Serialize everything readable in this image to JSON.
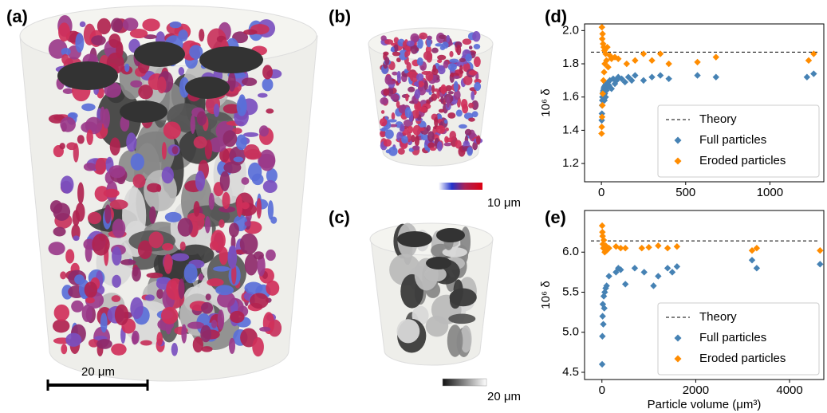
{
  "figure": {
    "panel_labels": [
      "(a)",
      "(b)",
      "(c)",
      "(d)",
      "(e)"
    ],
    "scale_bar": "20 μm",
    "colorbar_b": "10 μm",
    "colorbar_c": "20 μm"
  },
  "chart_data": [
    {
      "type": "scatter",
      "ylabel": "10⁶ δ",
      "xlim": [
        -100,
        1320
      ],
      "ylim": [
        1.09,
        2.04
      ],
      "xticks": [
        0,
        500,
        1000
      ],
      "yticks": [
        1.2,
        1.4,
        1.6,
        1.8,
        {
          "value": 2,
          "label": "2.0"
        }
      ],
      "legend": "lower right",
      "reference_line": {
        "name": "Theory",
        "value": 1.87,
        "color": "#000000"
      },
      "series": [
        {
          "name": "Full particles",
          "color": "#4682b4",
          "x": [
            2,
            3,
            4,
            5,
            6,
            8,
            10,
            12,
            14,
            16,
            18,
            20,
            22,
            25,
            28,
            30,
            35,
            40,
            45,
            50,
            60,
            70,
            80,
            90,
            100,
            120,
            140,
            160,
            180,
            200,
            250,
            300,
            350,
            400,
            570,
            680,
            1220,
            1260
          ],
          "values": [
            1.46,
            1.5,
            1.55,
            1.58,
            1.6,
            1.62,
            1.63,
            1.64,
            1.65,
            1.66,
            1.58,
            1.62,
            1.67,
            1.6,
            1.68,
            1.64,
            1.66,
            1.69,
            1.67,
            1.7,
            1.65,
            1.71,
            1.68,
            1.7,
            1.72,
            1.71,
            1.69,
            1.72,
            1.7,
            1.73,
            1.7,
            1.72,
            1.73,
            1.71,
            1.73,
            1.72,
            1.72,
            1.74
          ]
        },
        {
          "name": "Eroded particles",
          "color": "#ff8c00",
          "x": [
            1,
            2,
            3,
            4,
            5,
            6,
            7,
            8,
            10,
            12,
            14,
            16,
            18,
            20,
            25,
            30,
            35,
            40,
            50,
            60,
            80,
            100,
            150,
            200,
            250,
            300,
            350,
            400,
            570,
            680,
            1230,
            1260
          ],
          "values": [
            1.38,
            1.42,
            2.02,
            1.48,
            1.95,
            1.55,
            1.98,
            1.62,
            1.92,
            1.7,
            1.9,
            1.75,
            1.88,
            1.8,
            1.86,
            1.82,
            1.9,
            1.78,
            1.85,
            1.83,
            1.84,
            1.83,
            1.8,
            1.82,
            1.86,
            1.82,
            1.86,
            1.8,
            1.81,
            1.84,
            1.82,
            1.86
          ]
        }
      ]
    },
    {
      "type": "scatter",
      "xlabel": "Particle volume (μm³)",
      "ylabel": "10⁶ δ",
      "xlim": [
        -370,
        4730
      ],
      "ylim": [
        4.41,
        6.52
      ],
      "xticks": [
        0,
        2000,
        4000
      ],
      "yticks": [
        4.5,
        {
          "value": 5,
          "label": "5.0"
        },
        5.5,
        {
          "value": 6,
          "label": "6.0"
        }
      ],
      "legend": "lower right",
      "reference_line": {
        "name": "Theory",
        "value": 6.14,
        "color": "#000000"
      },
      "series": [
        {
          "name": "Full particles",
          "color": "#4682b4",
          "x": [
            5,
            10,
            15,
            20,
            30,
            40,
            50,
            60,
            80,
            100,
            150,
            300,
            350,
            400,
            500,
            700,
            900,
            1100,
            1200,
            1400,
            1500,
            1600,
            3200,
            3300,
            4650
          ],
          "values": [
            4.6,
            4.95,
            5.2,
            5.35,
            5.1,
            5.45,
            5.3,
            5.5,
            5.55,
            5.58,
            5.7,
            5.75,
            5.8,
            5.78,
            5.6,
            5.8,
            5.75,
            5.58,
            5.7,
            5.8,
            5.75,
            5.82,
            5.9,
            5.8,
            5.85
          ]
        },
        {
          "name": "Eroded particles",
          "color": "#ff8c00",
          "x": [
            5,
            10,
            15,
            20,
            30,
            40,
            60,
            80,
            100,
            150,
            300,
            400,
            500,
            850,
            1000,
            1200,
            1400,
            1600,
            3200,
            3300,
            4650
          ],
          "values": [
            6.33,
            6.25,
            6.2,
            6.1,
            6.05,
            6.15,
            6.0,
            6.08,
            6.02,
            6.05,
            6.07,
            6.05,
            6.05,
            6.05,
            6.06,
            6.08,
            6.05,
            6.07,
            6.02,
            6.05,
            6.02
          ]
        }
      ]
    }
  ]
}
